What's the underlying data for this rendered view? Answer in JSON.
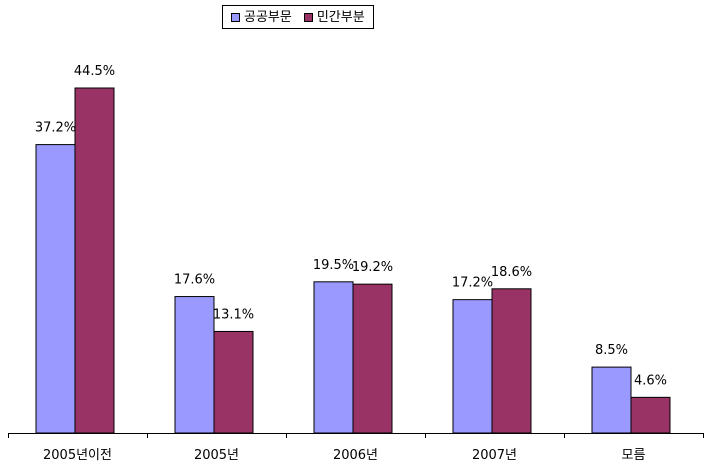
{
  "chart_data": {
    "type": "bar",
    "categories": [
      "2005년이전",
      "2005년",
      "2006년",
      "2007년",
      "모름"
    ],
    "series": [
      {
        "name": "공공부문",
        "values": [
          37.2,
          17.6,
          19.5,
          17.2,
          8.5
        ],
        "labels": [
          "37.2%",
          "17.6%",
          "19.5%",
          "17.2%",
          "8.5%"
        ],
        "color": "#9999FF"
      },
      {
        "name": "민간부분",
        "values": [
          44.5,
          13.1,
          19.2,
          18.6,
          4.6
        ],
        "labels": [
          "44.5%",
          "13.1%",
          "19.2%",
          "18.6%",
          "4.6%"
        ],
        "color": "#993366"
      }
    ],
    "ylim": [
      0,
      50
    ],
    "grid": false,
    "legend_position": "top",
    "title": "",
    "xlabel": "",
    "ylabel": ""
  }
}
